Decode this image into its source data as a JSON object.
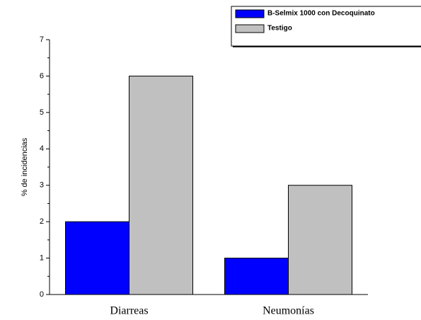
{
  "chart_data": {
    "type": "bar",
    "y_label": "% de incidencias",
    "categories": [
      "Diarreas",
      "Neumonías"
    ],
    "series": [
      {
        "name": "B-Selmix 1000 con Decoquinato",
        "color": "#0000ff",
        "values": [
          2,
          1
        ]
      },
      {
        "name": "Testigo",
        "color": "#c0c0c0",
        "values": [
          6,
          3
        ]
      }
    ],
    "ylim": [
      0,
      7
    ],
    "yticks": [
      0,
      1,
      2,
      3,
      4,
      5,
      6,
      7
    ]
  }
}
